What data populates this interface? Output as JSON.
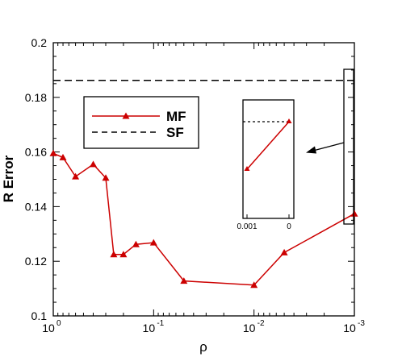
{
  "chart_data": {
    "type": "line",
    "xlabel": "ρ",
    "ylabel": "R Error",
    "xscale": "log",
    "x_axis_reversed": true,
    "xlim": [
      1,
      0.001
    ],
    "ylim": [
      0.1,
      0.2
    ],
    "x_tick_labels": [
      {
        "value": 1,
        "label": "10",
        "exponent": "0"
      },
      {
        "value": 0.1,
        "label": "10",
        "exponent": "-1"
      },
      {
        "value": 0.01,
        "label": "10",
        "exponent": "-2"
      },
      {
        "value": 0.001,
        "label": "10",
        "exponent": "-3"
      }
    ],
    "y_ticks": [
      0.1,
      0.12,
      0.14,
      0.16,
      0.18,
      0.2
    ],
    "y_tick_labels": [
      "0.1",
      "0.12",
      "0.14",
      "0.16",
      "0.18",
      "0.2"
    ],
    "legend_position": "upper-left",
    "series": [
      {
        "name": "MF",
        "color": "#cc0000",
        "marker": "triangle",
        "line_style": "solid",
        "x": [
          1,
          0.8,
          0.6,
          0.4,
          0.3,
          0.25,
          0.2,
          0.15,
          0.1,
          0.05,
          0.01,
          0.005,
          0.001
        ],
        "y": [
          0.1595,
          0.158,
          0.151,
          0.1555,
          0.1505,
          0.1225,
          0.1225,
          0.1262,
          0.1268,
          0.1128,
          0.1113,
          0.1232,
          0.1374
        ]
      },
      {
        "name": "SF",
        "color": "#000000",
        "line_style": "dashed",
        "x": [
          1,
          0.001
        ],
        "y": [
          0.1862,
          0.1862
        ]
      }
    ],
    "inset": {
      "x_tick_labels": [
        "0.001",
        "0"
      ],
      "mf_y": [
        0.1374,
        0.186
      ]
    }
  }
}
